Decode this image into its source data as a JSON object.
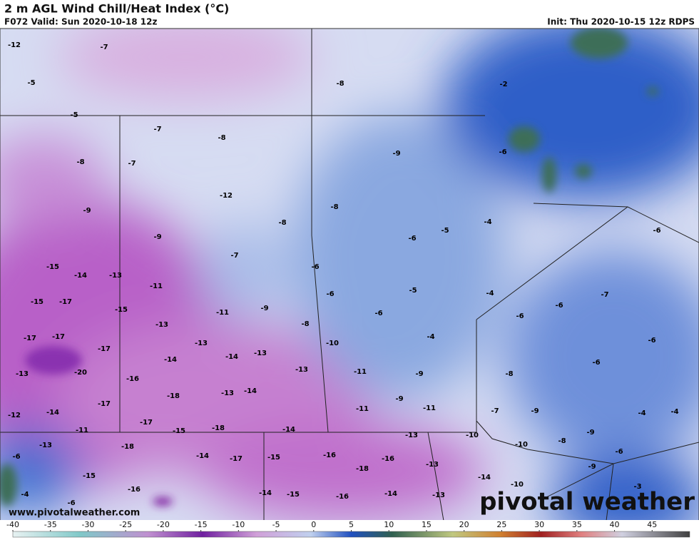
{
  "header": {
    "title": "2 m AGL Wind Chill/Heat Index (°C)",
    "valid": "F072 Valid: Sun 2020-10-18 12z",
    "init": "Init: Thu 2020-10-15 12z RDPS"
  },
  "map": {
    "labels": [
      -12,
      -7,
      -5,
      -8,
      -2,
      -5,
      -7,
      -8,
      -9,
      -6,
      -8,
      -7,
      -12,
      -8,
      -9,
      -8,
      -5,
      -4,
      -6,
      -6,
      -9,
      -7,
      -6,
      -15,
      -14,
      -13,
      -11,
      -5,
      -4,
      -7,
      -6,
      -15,
      -17,
      -15,
      -11,
      -9,
      -6,
      -6,
      -6,
      -13,
      -8,
      -17,
      -17,
      -4,
      -13,
      -10,
      -6,
      -17,
      -14,
      -14,
      -13,
      -6,
      -13,
      -20,
      -13,
      -11,
      -9,
      -8,
      -16,
      -18,
      -13,
      -14,
      -9,
      -17,
      -11,
      -11,
      -7,
      -9,
      -4,
      -4,
      -12,
      -14,
      -17,
      -11,
      -15,
      -18,
      -14,
      -9,
      -13,
      -10,
      -8,
      -13,
      -18,
      -10,
      -6,
      -6,
      -14,
      -17,
      -15,
      -16,
      -16,
      -13,
      -9,
      -18,
      -15,
      -14,
      -10,
      -3,
      -16,
      -4,
      -14,
      -15,
      -16,
      -14,
      -13,
      -6
    ]
  },
  "colorbar": {
    "range": [
      -40,
      50
    ],
    "ticks": [
      -40,
      -35,
      -30,
      -25,
      -20,
      -15,
      -10,
      -5,
      0,
      5,
      10,
      15,
      20,
      25,
      30,
      35,
      40,
      45
    ]
  },
  "footer": {
    "website": "www.pivotalweather.com",
    "logo": "pivotal weather"
  }
}
